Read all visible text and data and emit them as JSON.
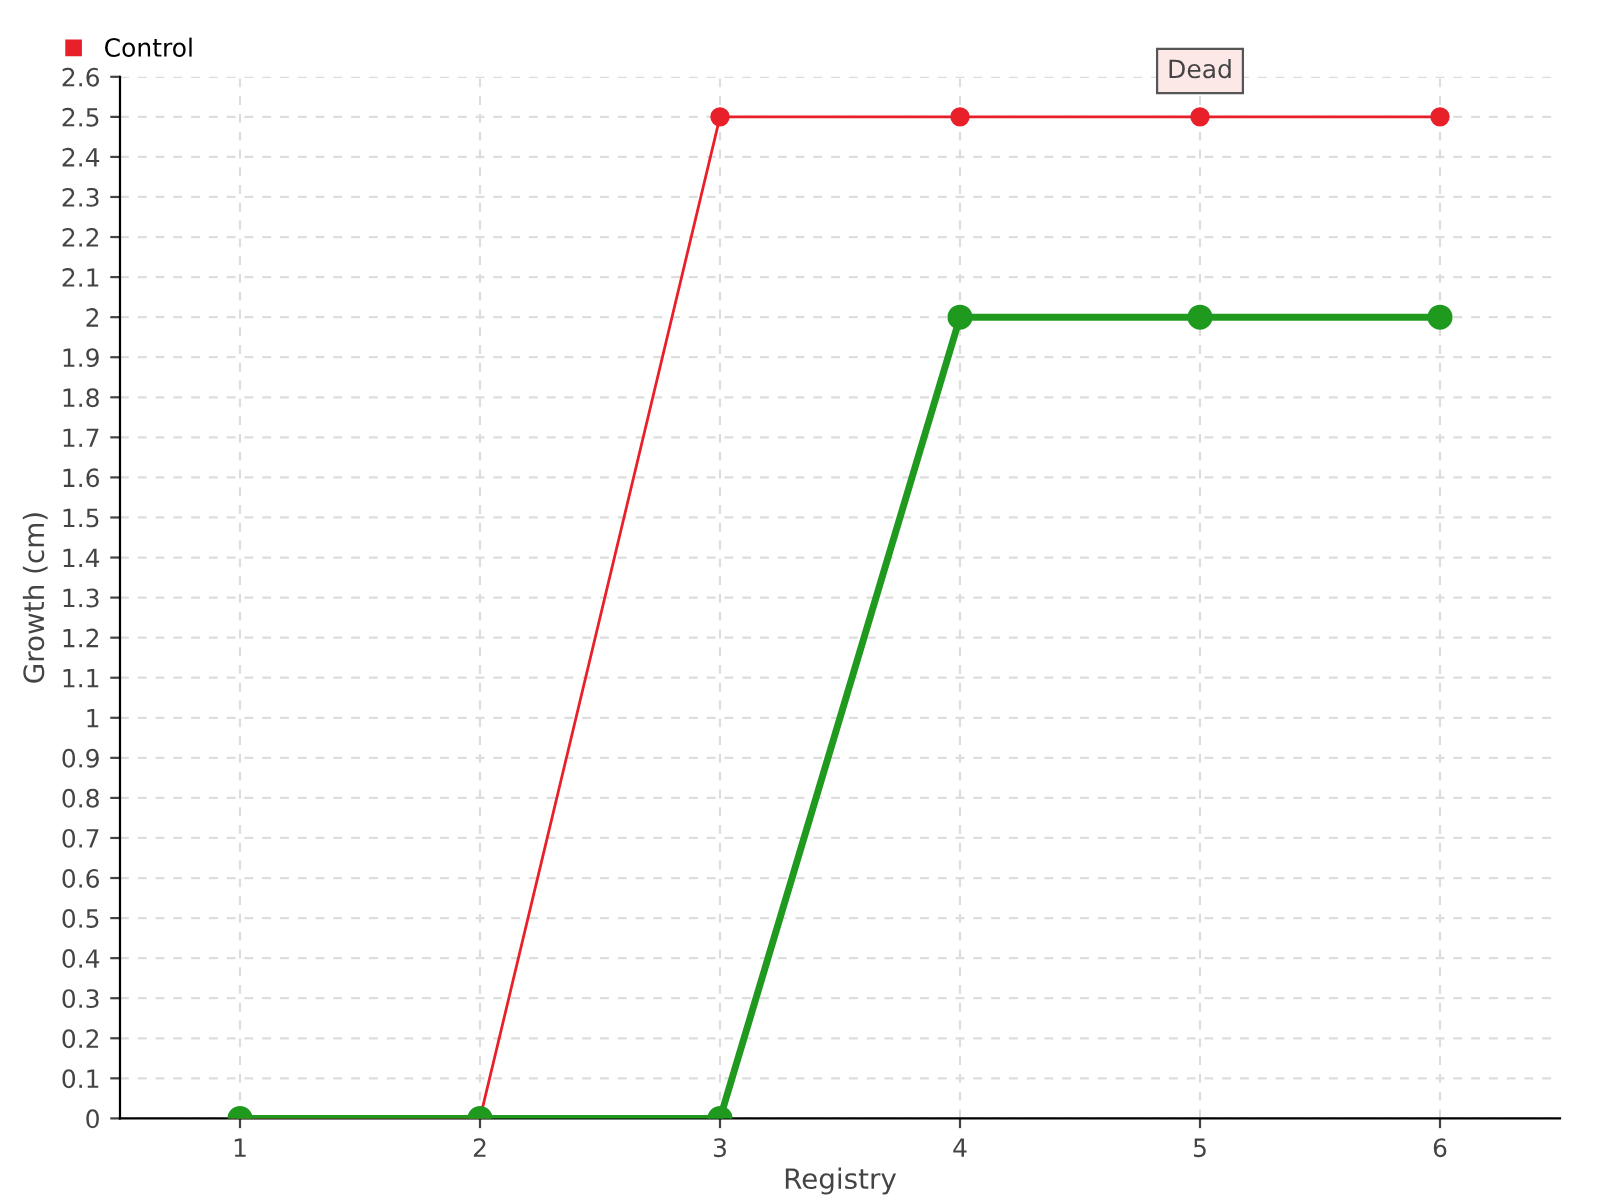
{
  "chart_data": {
    "type": "line",
    "xlabel": "Registry",
    "ylabel": "Growth (cm)",
    "categories": [
      "1",
      "2",
      "3",
      "4",
      "5",
      "6"
    ],
    "series": [
      {
        "color": "#1f9a1f",
        "values": [
          0,
          0,
          0,
          2,
          2,
          2
        ]
      },
      {
        "name": "Control",
        "color": "#e8202a",
        "values": [
          0,
          0,
          2.5,
          2.5,
          2.5,
          2.5
        ]
      }
    ],
    "ylim": [
      0,
      2.6
    ],
    "yticks": [
      0,
      0.1,
      0.2,
      0.3,
      0.4,
      0.5,
      0.6,
      0.7,
      0.8,
      0.9,
      1,
      1.1,
      1.2,
      1.3,
      1.4,
      1.5,
      1.6,
      1.7,
      1.8,
      1.9,
      2,
      2.1,
      2.2,
      2.3,
      2.4,
      2.5,
      2.6
    ],
    "annotations": [
      {
        "text": "Dead",
        "x": "5",
        "y": 2.5
      }
    ],
    "grid": true,
    "legend": "top left",
    "marker": "circle"
  }
}
